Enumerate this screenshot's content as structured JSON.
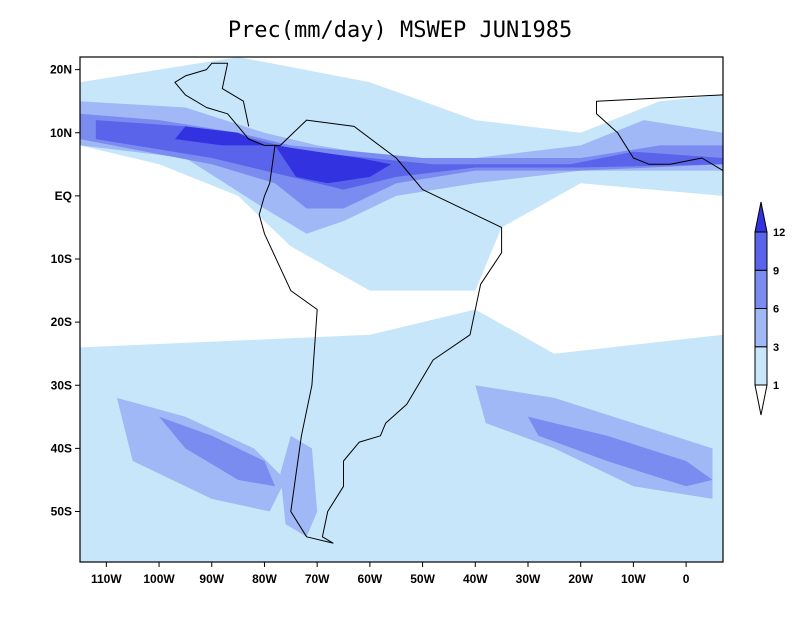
{
  "title": "Prec(mm/day) MSWEP JUN1985",
  "map": {
    "lon_range": [
      -115,
      7
    ],
    "lat_range": [
      -58,
      22
    ],
    "x_ticks": [
      {
        "lon": -110,
        "label": "110W"
      },
      {
        "lon": -100,
        "label": "100W"
      },
      {
        "lon": -90,
        "label": "90W"
      },
      {
        "lon": -80,
        "label": "80W"
      },
      {
        "lon": -70,
        "label": "70W"
      },
      {
        "lon": -60,
        "label": "60W"
      },
      {
        "lon": -50,
        "label": "50W"
      },
      {
        "lon": -40,
        "label": "40W"
      },
      {
        "lon": -30,
        "label": "30W"
      },
      {
        "lon": -20,
        "label": "20W"
      },
      {
        "lon": -10,
        "label": "10W"
      },
      {
        "lon": 0,
        "label": "0"
      }
    ],
    "y_ticks": [
      {
        "lat": 20,
        "label": "20N"
      },
      {
        "lat": 10,
        "label": "10N"
      },
      {
        "lat": 0,
        "label": "EQ"
      },
      {
        "lat": -10,
        "label": "10S"
      },
      {
        "lat": -20,
        "label": "20S"
      },
      {
        "lat": -30,
        "label": "30S"
      },
      {
        "lat": -40,
        "label": "40S"
      },
      {
        "lat": -50,
        "label": "50S"
      }
    ]
  },
  "colorbar": {
    "levels": [
      "1",
      "3",
      "6",
      "9",
      "12"
    ],
    "colors": [
      "#ffffff",
      "#c8e6fa",
      "#a0b8f5",
      "#7a8cf0",
      "#5a64ea",
      "#3232e0"
    ]
  },
  "precip_regions": [
    {
      "level": 1,
      "points": [
        [
          -115,
          -24
        ],
        [
          -60,
          -22
        ],
        [
          -40,
          -18
        ],
        [
          -25,
          -25
        ],
        [
          7,
          -22
        ],
        [
          7,
          -58
        ],
        [
          -115,
          -58
        ]
      ]
    },
    {
      "level": 1,
      "points": [
        [
          -115,
          18
        ],
        [
          -85,
          22
        ],
        [
          -60,
          18
        ],
        [
          -40,
          12
        ],
        [
          -20,
          10
        ],
        [
          -5,
          15
        ],
        [
          7,
          16
        ],
        [
          7,
          0
        ],
        [
          -20,
          2
        ],
        [
          -35,
          -5
        ],
        [
          -40,
          -15
        ],
        [
          -60,
          -15
        ],
        [
          -75,
          -8
        ],
        [
          -85,
          0
        ],
        [
          -100,
          5
        ],
        [
          -115,
          8
        ]
      ]
    },
    {
      "level": 1,
      "points": [
        [
          -113,
          -30
        ],
        [
          -95,
          -32
        ],
        [
          -80,
          -36
        ],
        [
          -75,
          -42
        ],
        [
          -78,
          -48
        ],
        [
          -85,
          -52
        ],
        [
          -100,
          -48
        ],
        [
          -112,
          -42
        ]
      ]
    },
    {
      "level": 2,
      "points": [
        [
          -108,
          -32
        ],
        [
          -95,
          -35
        ],
        [
          -82,
          -40
        ],
        [
          -76,
          -45
        ],
        [
          -79,
          -50
        ],
        [
          -90,
          -48
        ],
        [
          -105,
          -42
        ]
      ]
    },
    {
      "level": 2,
      "points": [
        [
          -40,
          -30
        ],
        [
          -25,
          -32
        ],
        [
          -10,
          -36
        ],
        [
          5,
          -40
        ],
        [
          5,
          -48
        ],
        [
          -10,
          -46
        ],
        [
          -25,
          -40
        ],
        [
          -38,
          -36
        ]
      ]
    },
    {
      "level": 2,
      "points": [
        [
          -115,
          15
        ],
        [
          -95,
          14
        ],
        [
          -80,
          10
        ],
        [
          -70,
          8
        ],
        [
          -55,
          6
        ],
        [
          -40,
          6
        ],
        [
          -20,
          8
        ],
        [
          -8,
          12
        ],
        [
          7,
          10
        ],
        [
          7,
          4
        ],
        [
          -20,
          4
        ],
        [
          -40,
          2
        ],
        [
          -55,
          0
        ],
        [
          -65,
          -4
        ],
        [
          -72,
          -6
        ],
        [
          -80,
          -2
        ],
        [
          -95,
          6
        ],
        [
          -115,
          8
        ]
      ]
    },
    {
      "level": 2,
      "points": [
        [
          -75,
          -38
        ],
        [
          -71,
          -40
        ],
        [
          -70,
          -50
        ],
        [
          -72,
          -54
        ],
        [
          -76,
          -52
        ],
        [
          -77,
          -44
        ]
      ]
    },
    {
      "level": 3,
      "points": [
        [
          -115,
          13
        ],
        [
          -100,
          12
        ],
        [
          -85,
          10
        ],
        [
          -75,
          8
        ],
        [
          -62,
          7
        ],
        [
          -50,
          6
        ],
        [
          -35,
          6
        ],
        [
          -20,
          6
        ],
        [
          -5,
          8
        ],
        [
          7,
          8
        ],
        [
          7,
          5
        ],
        [
          -20,
          4
        ],
        [
          -40,
          4
        ],
        [
          -55,
          2
        ],
        [
          -65,
          -2
        ],
        [
          -72,
          -2
        ],
        [
          -78,
          2
        ],
        [
          -90,
          5
        ],
        [
          -115,
          9
        ]
      ]
    },
    {
      "level": 3,
      "points": [
        [
          -100,
          -35
        ],
        [
          -90,
          -38
        ],
        [
          -80,
          -42
        ],
        [
          -78,
          -46
        ],
        [
          -85,
          -45
        ],
        [
          -95,
          -40
        ]
      ]
    },
    {
      "level": 3,
      "points": [
        [
          -30,
          -35
        ],
        [
          -15,
          -38
        ],
        [
          0,
          -42
        ],
        [
          5,
          -45
        ],
        [
          0,
          -46
        ],
        [
          -15,
          -42
        ],
        [
          -28,
          -38
        ]
      ]
    },
    {
      "level": 4,
      "points": [
        [
          -112,
          12
        ],
        [
          -95,
          11
        ],
        [
          -82,
          9
        ],
        [
          -72,
          7
        ],
        [
          -60,
          6
        ],
        [
          -48,
          5
        ],
        [
          -35,
          5
        ],
        [
          -22,
          5
        ],
        [
          -10,
          7
        ],
        [
          7,
          6
        ],
        [
          7,
          5
        ],
        [
          -20,
          4.5
        ],
        [
          -40,
          4.5
        ],
        [
          -55,
          3
        ],
        [
          -65,
          1
        ],
        [
          -75,
          3
        ],
        [
          -90,
          6
        ],
        [
          -112,
          9
        ]
      ]
    },
    {
      "level": 5,
      "points": [
        [
          -78,
          8
        ],
        [
          -70,
          7
        ],
        [
          -62,
          6
        ],
        [
          -56,
          5
        ],
        [
          -60,
          3
        ],
        [
          -68,
          2
        ],
        [
          -74,
          3
        ]
      ]
    },
    {
      "level": 5,
      "points": [
        [
          -95,
          11
        ],
        [
          -85,
          10
        ],
        [
          -80,
          8
        ],
        [
          -88,
          8
        ],
        [
          -97,
          9
        ]
      ]
    }
  ],
  "land_outlines": [
    {
      "name": "south-america",
      "points": [
        [
          -77,
          8
        ],
        [
          -72,
          12
        ],
        [
          -63,
          11
        ],
        [
          -55,
          6
        ],
        [
          -50,
          1
        ],
        [
          -35,
          -5
        ],
        [
          -35,
          -9
        ],
        [
          -39,
          -14
        ],
        [
          -41,
          -22
        ],
        [
          -48,
          -26
        ],
        [
          -53,
          -33
        ],
        [
          -57,
          -36
        ],
        [
          -58,
          -38
        ],
        [
          -62,
          -39
        ],
        [
          -65,
          -42
        ],
        [
          -65,
          -46
        ],
        [
          -68,
          -50
        ],
        [
          -69,
          -54
        ],
        [
          -67,
          -55
        ],
        [
          -72,
          -54
        ],
        [
          -75,
          -50
        ],
        [
          -74,
          -44
        ],
        [
          -73,
          -38
        ],
        [
          -71,
          -30
        ],
        [
          -70,
          -18
        ],
        [
          -75,
          -15
        ],
        [
          -80,
          -6
        ],
        [
          -81,
          -3
        ],
        [
          -80,
          0
        ],
        [
          -79,
          2
        ],
        [
          -78,
          8
        ]
      ]
    },
    {
      "name": "central-america",
      "points": [
        [
          -77,
          8
        ],
        [
          -80,
          8
        ],
        [
          -83,
          9
        ],
        [
          -85,
          11
        ],
        [
          -87,
          13
        ],
        [
          -91,
          14
        ],
        [
          -95,
          16
        ],
        [
          -97,
          18
        ],
        [
          -95,
          19
        ],
        [
          -91,
          20
        ],
        [
          -90,
          21
        ],
        [
          -87,
          21
        ],
        [
          -88,
          17
        ],
        [
          -84,
          15
        ],
        [
          -83,
          11
        ]
      ]
    },
    {
      "name": "africa",
      "points": [
        [
          7,
          16
        ],
        [
          -17,
          15
        ],
        [
          -17,
          13
        ],
        [
          -13,
          10
        ],
        [
          -10,
          6
        ],
        [
          -7,
          5
        ],
        [
          -3,
          5
        ],
        [
          3,
          6
        ],
        [
          7,
          4
        ]
      ]
    }
  ]
}
